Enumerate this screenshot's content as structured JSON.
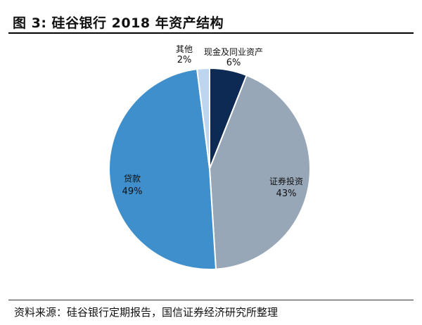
{
  "header": {
    "title": "图 3:  硅谷银行 2018 年资产结构"
  },
  "chart_data": {
    "type": "pie",
    "title": "",
    "slices": [
      {
        "label": "现金及同业资产",
        "value": 6,
        "value_label": "6%",
        "color": "#0d2a55"
      },
      {
        "label": "证券投资",
        "value": 43,
        "value_label": "43%",
        "color": "#98a7b8"
      },
      {
        "label": "贷款",
        "value": 49,
        "value_label": "49%",
        "color": "#3e8fcc"
      },
      {
        "label": "其他",
        "value": 2,
        "value_label": "2%",
        "color": "#bdd5ee"
      }
    ]
  },
  "footer": {
    "source": "资料来源：硅谷银行定期报告，国信证券经济研究所整理"
  }
}
